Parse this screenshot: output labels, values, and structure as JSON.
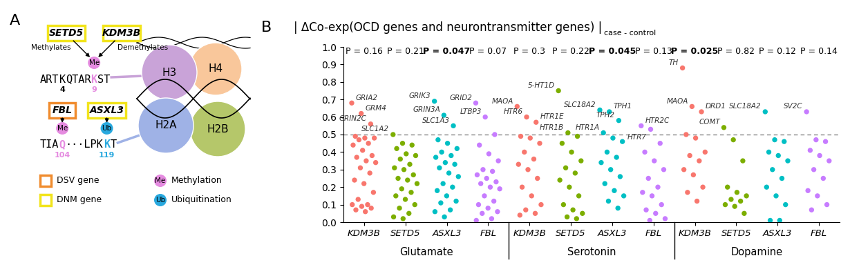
{
  "diagram": {
    "panel_label": "A",
    "sites": [
      {
        "sequence": [
          {
            "text": "ART"
          },
          {
            "text": "K",
            "residue": 4
          },
          {
            "text": "QTAR"
          },
          {
            "text": "K",
            "residue": 9,
            "mark": "Me"
          },
          {
            "text": "ST"
          }
        ],
        "enzymes": [
          {
            "name": "SETD5",
            "kind": "DNM gene",
            "action": "Methylates",
            "residue": 9
          },
          {
            "name": "KDM3B",
            "kind": "DNM gene",
            "action": "Demethylates",
            "residue": 9
          }
        ]
      },
      {
        "sequence": [
          {
            "text": "TIA"
          },
          {
            "text": "Q",
            "residue": 104,
            "mark": "Me"
          },
          {
            "text": "···LPK"
          },
          {
            "text": "K",
            "residue": 119,
            "mark": "Ub"
          },
          {
            "text": "T"
          }
        ],
        "enzymes": [
          {
            "name": "FBL",
            "kind": "DSV gene",
            "residue": 104
          },
          {
            "name": "ASXL3",
            "kind": "DNM gene",
            "residue": 119
          }
        ]
      }
    ],
    "histones": [
      {
        "name": "H3",
        "color": "#c9a3d8"
      },
      {
        "name": "H4",
        "color": "#f9c79b"
      },
      {
        "name": "H2A",
        "color": "#9fb2e6"
      },
      {
        "name": "H2B",
        "color": "#b5c76a"
      }
    ],
    "kinds": [
      {
        "name": "DSV gene",
        "color": "#f08c2e"
      },
      {
        "name": "DNM gene",
        "color": "#f2e41c"
      }
    ],
    "marks": [
      {
        "name": "Me",
        "label": "Methylation",
        "color": "#e58be0"
      },
      {
        "name": "Ub",
        "label": "Ubiquitination",
        "color": "#29a9df"
      }
    ]
  },
  "chart_data": {
    "type": "scatter",
    "panel_label": "B",
    "title": "| ΔCo-exp(OCD genes and neurontransmitter genes) |",
    "subtitle": "case - control",
    "ylim": [
      0,
      1.0
    ],
    "yticks": [
      {
        "value": 0,
        "label": "0.0"
      },
      {
        "value": 0.1,
        "label": "0.1"
      },
      {
        "value": 0.2,
        "label": "0.2"
      },
      {
        "value": 0.3,
        "label": "0.3"
      },
      {
        "value": 0.4,
        "label": "0.4"
      },
      {
        "value": 0.5,
        "label": "0.5"
      },
      {
        "value": 0.6,
        "label": "0.6"
      },
      {
        "value": 0.7,
        "label": "0.7"
      },
      {
        "value": 0.8,
        "label": "0.8"
      },
      {
        "value": 0.9,
        "label": "0.9"
      },
      {
        "value": 1.0,
        "label": "1.0"
      }
    ],
    "threshold": 0.5,
    "line_style": "dashed",
    "series": [
      {
        "name": "KDM3B",
        "color": "#f8766d"
      },
      {
        "name": "SETD5",
        "color": "#7cae00"
      },
      {
        "name": "ASXL3",
        "color": "#00bfc4"
      },
      {
        "name": "FBL",
        "color": "#c77cff"
      }
    ],
    "groups": [
      {
        "name": "Glutamate",
        "columns": [
          {
            "p": 0.16,
            "p_label": "P = 0.16",
            "labeled": [
              {
                "value": 0.68,
                "label": "GRIA2"
              },
              {
                "value": 0.62,
                "label": "GRM4"
              },
              {
                "value": 0.56,
                "label": "GRIN2C"
              }
            ],
            "values": [
              0.49,
              0.48,
              0.48,
              0.47,
              0.45,
              0.44,
              0.41,
              0.38,
              0.37,
              0.35,
              0.34,
              0.31,
              0.28,
              0.24,
              0.22,
              0.17,
              0.13,
              0.1,
              0.1,
              0.09,
              0.08,
              0.07,
              0.06
            ]
          },
          {
            "p": 0.21,
            "p_label": "P = 0.21",
            "labeled": [
              {
                "value": 0.5,
                "label": "SLC1A2"
              }
            ],
            "values": [
              0.45,
              0.44,
              0.42,
              0.39,
              0.38,
              0.36,
              0.33,
              0.31,
              0.3,
              0.27,
              0.25,
              0.24,
              0.22,
              0.19,
              0.17,
              0.15,
              0.13,
              0.1,
              0.08,
              0.05,
              0.03,
              0.02
            ]
          },
          {
            "p": 0.047,
            "p_label": "P = 0.047",
            "labeled": [
              {
                "value": 0.69,
                "label": "GRIK3"
              },
              {
                "value": 0.61,
                "label": "GRIN3A"
              },
              {
                "value": 0.55,
                "label": "SLC1A3"
              }
            ],
            "values": [
              0.47,
              0.45,
              0.42,
              0.4,
              0.38,
              0.37,
              0.34,
              0.33,
              0.31,
              0.28,
              0.26,
              0.22,
              0.2,
              0.18,
              0.15,
              0.12,
              0.11,
              0.07,
              0.06,
              0.03
            ]
          },
          {
            "p": 0.07,
            "p_label": "P = 0.07",
            "labeled": [
              {
                "value": 0.68,
                "label": "GRID2"
              },
              {
                "value": 0.6,
                "label": "LTBP3"
              }
            ],
            "values": [
              0.5,
              0.44,
              0.39,
              0.35,
              0.3,
              0.29,
              0.27,
              0.25,
              0.23,
              0.22,
              0.2,
              0.19,
              0.15,
              0.12,
              0.1,
              0.08,
              0.06,
              0.05,
              0.02,
              0.01
            ]
          }
        ]
      },
      {
        "name": "Serotonin",
        "columns": [
          {
            "p": 0.3,
            "p_label": "P = 0.3",
            "labeled": [
              {
                "value": 0.66,
                "label": "MAOA"
              },
              {
                "value": 0.6,
                "label": "HTR6"
              },
              {
                "value": 0.57,
                "label": "HTR1E"
              }
            ],
            "values": [
              0.49,
              0.48,
              0.45,
              0.4,
              0.36,
              0.33,
              0.3,
              0.25,
              0.2,
              0.15,
              0.1,
              0.07,
              0.05,
              0.04
            ]
          },
          {
            "p": 0.22,
            "p_label": "P = 0.22",
            "labeled": [
              {
                "value": 0.75,
                "label": "5-HT1D"
              },
              {
                "value": 0.51,
                "label": "HTR1B"
              }
            ],
            "values": [
              0.49,
              0.45,
              0.4,
              0.35,
              0.31,
              0.28,
              0.24,
              0.2,
              0.15,
              0.1,
              0.07,
              0.05,
              0.03,
              0.02
            ]
          },
          {
            "p": 0.045,
            "p_label": "P = 0.045",
            "labeled": [
              {
                "value": 0.64,
                "label": "SLC18A2"
              },
              {
                "value": 0.63,
                "label": "TPH1"
              },
              {
                "value": 0.58,
                "label": "TPH2"
              },
              {
                "value": 0.51,
                "label": "HTR1A"
              }
            ],
            "values": [
              0.48,
              0.46,
              0.4,
              0.37,
              0.34,
              0.3,
              0.26,
              0.22,
              0.18,
              0.15,
              0.12,
              0.08
            ]
          },
          {
            "p": 0.13,
            "p_label": "P = 0.13",
            "labeled": [
              {
                "value": 0.55,
                "label": "HTR2C"
              },
              {
                "value": 0.53,
                "label": "HTR7"
              }
            ],
            "values": [
              0.45,
              0.4,
              0.35,
              0.3,
              0.25,
              0.2,
              0.17,
              0.15,
              0.1,
              0.07,
              0.05,
              0.02,
              0.01
            ]
          }
        ]
      },
      {
        "name": "Dopamine",
        "columns": [
          {
            "p": 0.025,
            "p_label": "P = 0.025",
            "labeled": [
              {
                "value": 0.88,
                "label": "TH"
              },
              {
                "value": 0.66,
                "label": "MAOA"
              },
              {
                "value": 0.63,
                "label": "DRD1"
              }
            ],
            "values": [
              0.5,
              0.48,
              0.4,
              0.38,
              0.35,
              0.3,
              0.27,
              0.2,
              0.17,
              0.12
            ]
          },
          {
            "p": 0.82,
            "p_label": "P = 0.82",
            "labeled": [
              {
                "value": 0.54,
                "label": "COMT"
              }
            ],
            "values": [
              0.47,
              0.35,
              0.2,
              0.17,
              0.15,
              0.13,
              0.12,
              0.1,
              0.09,
              0.05
            ]
          },
          {
            "p": 0.12,
            "p_label": "P = 0.12",
            "labeled": [
              {
                "value": 0.63,
                "label": "SLC18A2"
              }
            ],
            "values": [
              0.47,
              0.46,
              0.4,
              0.38,
              0.35,
              0.3,
              0.25,
              0.2,
              0.15,
              0.1,
              0.01,
              0.01
            ]
          },
          {
            "p": 0.14,
            "p_label": "P = 0.14",
            "labeled": [
              {
                "value": 0.63,
                "label": "SV2C"
              }
            ],
            "values": [
              0.47,
              0.46,
              0.41,
              0.38,
              0.35,
              0.3,
              0.25,
              0.18,
              0.15,
              0.1,
              0.07
            ]
          }
        ]
      }
    ]
  }
}
